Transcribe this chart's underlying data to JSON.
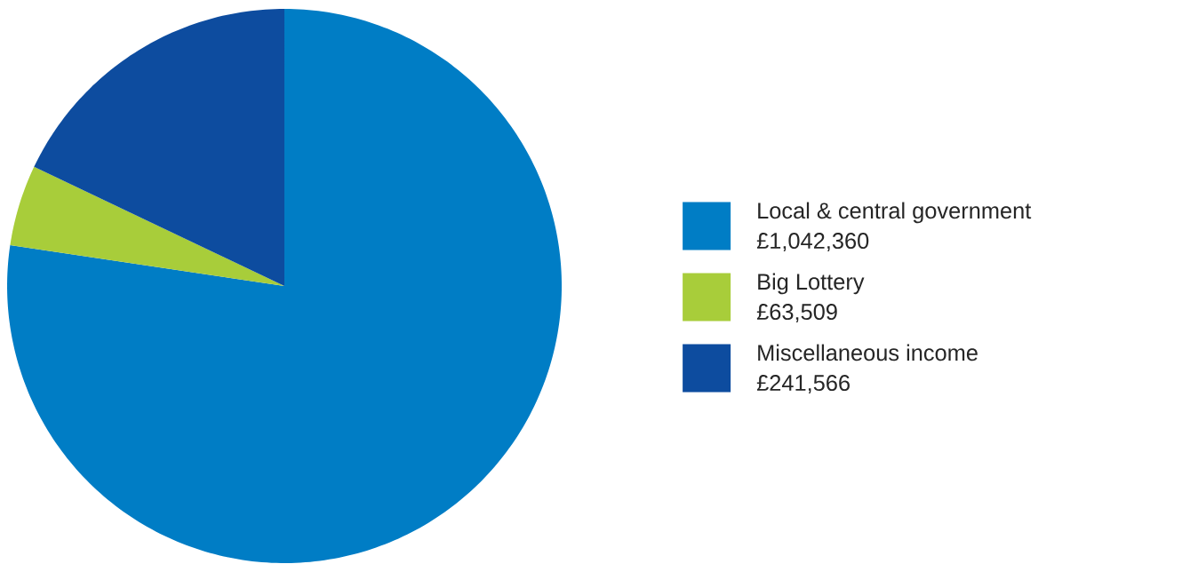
{
  "chart_data": {
    "type": "pie",
    "categories": [
      "Local & central government",
      "Big Lottery",
      "Miscellaneous income"
    ],
    "values": [
      1042360,
      63509,
      241566
    ],
    "colors": [
      "#007dc5",
      "#a8cd3a",
      "#0d4c9f"
    ],
    "value_labels": [
      "£1,042,360",
      "£63,509",
      "£241,566"
    ],
    "legend": "right"
  }
}
